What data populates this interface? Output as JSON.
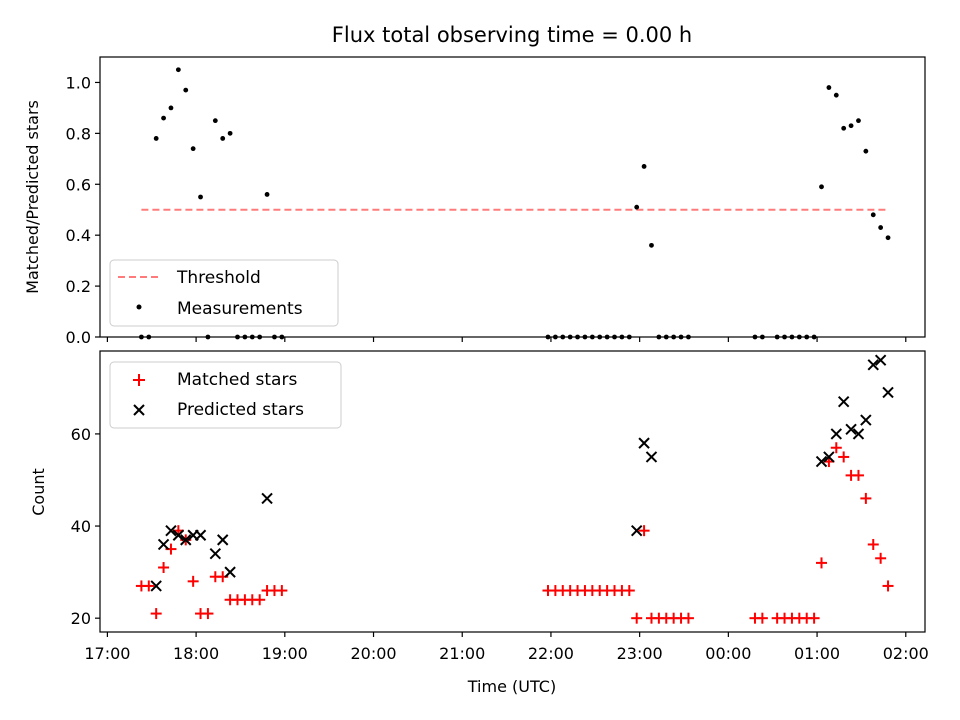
{
  "chart_data": [
    {
      "type": "scatter",
      "title": "Flux total observing time = 0.00 h",
      "xlabel": "",
      "ylabel": "Matched/Predicted stars",
      "ylim": [
        0,
        1.1
      ],
      "yticks": [
        "0.0",
        "0.2",
        "0.4",
        "0.6",
        "0.8",
        "1.0"
      ],
      "yticks_values": [
        0,
        0.2,
        0.4,
        0.6,
        0.8,
        1.0
      ],
      "threshold": {
        "name": "Threshold",
        "value": 0.5,
        "x_start": "17:23",
        "x_end": "01:48",
        "color": "#ff7b7b"
      },
      "legend_location": "lower-left",
      "series": [
        {
          "name": "Measurements",
          "color": "#000000",
          "marker": "dot",
          "x": [
            "17:23",
            "17:28",
            "17:33",
            "17:38",
            "17:43",
            "17:48",
            "17:53",
            "17:58",
            "18:03",
            "18:08",
            "18:13",
            "18:18",
            "18:23",
            "18:28",
            "18:33",
            "18:38",
            "18:43",
            "18:48",
            "18:53",
            "18:58",
            "21:58",
            "22:03",
            "22:08",
            "22:13",
            "22:18",
            "22:23",
            "22:28",
            "22:33",
            "22:38",
            "22:43",
            "22:48",
            "22:53",
            "22:58",
            "23:03",
            "23:08",
            "23:13",
            "23:18",
            "23:23",
            "23:28",
            "23:33",
            "00:18",
            "00:23",
            "00:33",
            "00:38",
            "00:43",
            "00:48",
            "00:53",
            "00:58",
            "01:03",
            "01:08",
            "01:13",
            "01:18",
            "01:23",
            "01:28",
            "01:33",
            "01:38",
            "01:43",
            "01:48"
          ],
          "y": [
            0,
            0,
            0.78,
            0.86,
            0.9,
            1.05,
            0.97,
            0.74,
            0.55,
            0,
            0.85,
            0.78,
            0.8,
            0,
            0,
            0,
            0,
            0.56,
            0,
            0,
            0,
            0,
            0,
            0,
            0,
            0,
            0,
            0,
            0,
            0,
            0,
            0,
            0.51,
            0.67,
            0.36,
            0,
            0,
            0,
            0,
            0,
            0,
            0,
            0,
            0,
            0,
            0,
            0,
            0,
            0.59,
            0.98,
            0.95,
            0.82,
            0.83,
            0.85,
            0.73,
            0.48,
            0.43,
            0.39
          ]
        }
      ]
    },
    {
      "type": "scatter",
      "title": "",
      "xlabel": "Time (UTC)",
      "ylabel": "Count",
      "ylim": [
        17,
        78
      ],
      "yticks": [
        "20",
        "40",
        "60"
      ],
      "yticks_values": [
        20,
        40,
        60
      ],
      "xlim": [
        "16:55",
        "02:13"
      ],
      "xticks": [
        "17:00",
        "18:00",
        "19:00",
        "20:00",
        "21:00",
        "22:00",
        "23:00",
        "00:00",
        "01:00",
        "02:00"
      ],
      "legend_location": "upper-left",
      "series": [
        {
          "name": "Matched stars",
          "color": "#ff0000",
          "marker": "plus",
          "x": [
            "17:23",
            "17:28",
            "17:33",
            "17:38",
            "17:43",
            "17:48",
            "17:53",
            "17:58",
            "18:03",
            "18:08",
            "18:13",
            "18:18",
            "18:23",
            "18:28",
            "18:33",
            "18:38",
            "18:43",
            "18:48",
            "18:53",
            "18:58",
            "21:58",
            "22:03",
            "22:08",
            "22:13",
            "22:18",
            "22:23",
            "22:28",
            "22:33",
            "22:38",
            "22:43",
            "22:48",
            "22:53",
            "22:58",
            "23:03",
            "23:08",
            "23:13",
            "23:18",
            "23:23",
            "23:28",
            "23:33",
            "00:18",
            "00:23",
            "00:33",
            "00:38",
            "00:43",
            "00:48",
            "00:53",
            "00:58",
            "01:03",
            "01:08",
            "01:13",
            "01:18",
            "01:23",
            "01:28",
            "01:33",
            "01:38",
            "01:43",
            "01:48"
          ],
          "y": [
            27,
            27,
            21,
            31,
            35,
            39,
            37,
            28,
            21,
            21,
            29,
            29,
            24,
            24,
            24,
            24,
            24,
            26,
            26,
            26,
            26,
            26,
            26,
            26,
            26,
            26,
            26,
            26,
            26,
            26,
            26,
            26,
            20,
            39,
            20,
            20,
            20,
            20,
            20,
            20,
            20,
            20,
            20,
            20,
            20,
            20,
            20,
            20,
            32,
            54,
            57,
            55,
            51,
            51,
            46,
            36,
            33,
            27
          ]
        },
        {
          "name": "Predicted stars",
          "color": "#000000",
          "marker": "x",
          "x": [
            "17:33",
            "17:38",
            "17:43",
            "17:48",
            "17:53",
            "17:58",
            "18:03",
            "18:13",
            "18:18",
            "18:23",
            "18:48",
            "22:58",
            "23:03",
            "23:08",
            "01:03",
            "01:08",
            "01:13",
            "01:18",
            "01:23",
            "01:28",
            "01:33",
            "01:38",
            "01:43",
            "01:48"
          ],
          "y": [
            27,
            36,
            39,
            38,
            37,
            38,
            38,
            34,
            37,
            30,
            46,
            39,
            58,
            55,
            54,
            55,
            60,
            67,
            61,
            60,
            63,
            75,
            76,
            69
          ]
        }
      ]
    }
  ]
}
